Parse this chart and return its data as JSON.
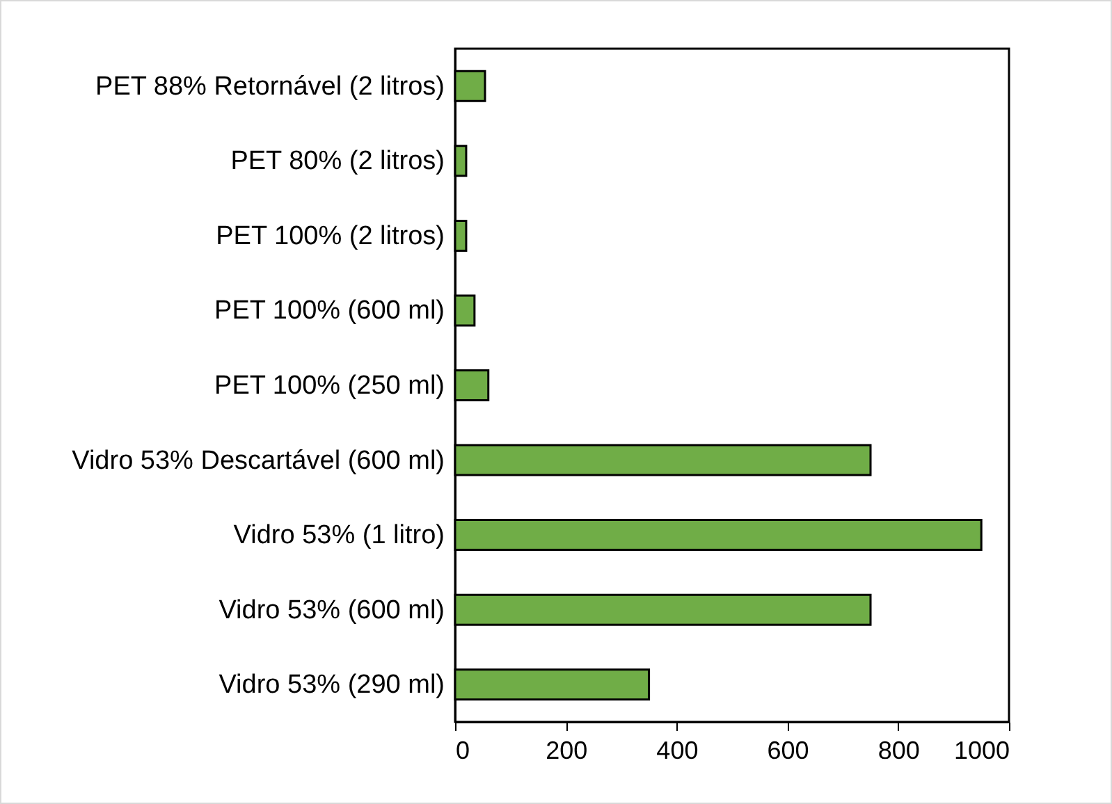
{
  "chart_data": {
    "type": "bar",
    "orientation": "horizontal",
    "categories": [
      "PET 88% Retornável (2 litros)",
      "PET 80% (2 litros)",
      "PET 100% (2 litros)",
      "PET 100% (600 ml)",
      "PET 100% (250 ml)",
      "Vidro 53% Descartável (600 ml)",
      "Vidro 53% (1 litro)",
      "Vidro 53% (600 ml)",
      "Vidro 53% (290 ml)"
    ],
    "values": [
      54,
      20,
      20,
      35,
      60,
      750,
      950,
      750,
      350
    ],
    "color": "#70ad47",
    "xlim": [
      0,
      1000
    ],
    "xticks": [
      0,
      200,
      400,
      600,
      800,
      1000
    ],
    "grid": false
  }
}
